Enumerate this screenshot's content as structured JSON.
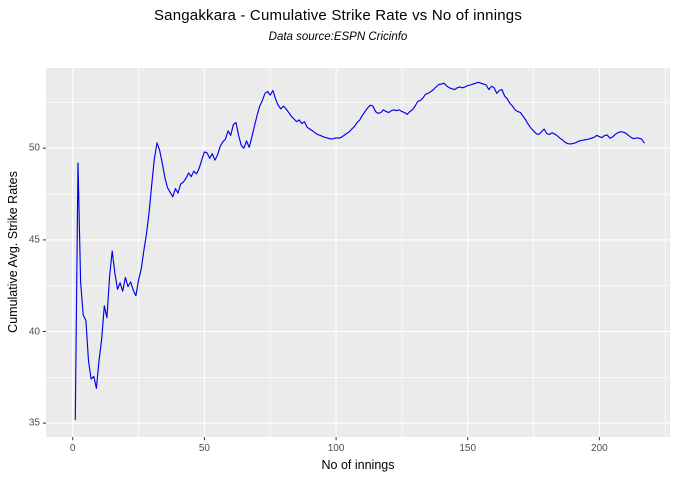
{
  "chart_data": {
    "type": "line",
    "title": "Sangakkara - Cumulative Strike Rate vs No of innings",
    "subtitle": "Data source:ESPN Cricinfo",
    "xlabel": "No of innings",
    "ylabel": "Cumulative Avg. Strike Rates",
    "legend_position": "none",
    "grid": true,
    "x_ticks": [
      0,
      50,
      100,
      150,
      200
    ],
    "y_ticks": [
      35,
      40,
      45,
      50
    ],
    "x_minor_ticks": [
      25,
      75,
      125,
      175,
      225
    ],
    "y_minor_ticks": [
      37.5,
      42.5,
      47.5,
      52.5
    ],
    "x_range": [
      -10.14,
      226.8
    ],
    "y_range": [
      34.24,
      54.38
    ],
    "colors": {
      "line": "#0000ee",
      "panel_background": "#ebebeb",
      "gridline": "#ffffff",
      "tick_mark": "#333333",
      "tick_label": "#4d4d4d",
      "text": "#000000"
    },
    "series": [
      {
        "name": "Cumulative Avg. Strike Rate",
        "points": [
          [
            1,
            35.2
          ],
          [
            2,
            49.2
          ],
          [
            3,
            42.7
          ],
          [
            4,
            40.9
          ],
          [
            5,
            40.6
          ],
          [
            6,
            38.4
          ],
          [
            7,
            37.4
          ],
          [
            8,
            37.55
          ],
          [
            9,
            36.9
          ],
          [
            10,
            38.4
          ],
          [
            11,
            39.6
          ],
          [
            12,
            41.4
          ],
          [
            13,
            40.75
          ],
          [
            14,
            43.0
          ],
          [
            15,
            44.4
          ],
          [
            16,
            43.2
          ],
          [
            17,
            42.3
          ],
          [
            18,
            42.65
          ],
          [
            19,
            42.2
          ],
          [
            20,
            42.95
          ],
          [
            21,
            42.45
          ],
          [
            22,
            42.7
          ],
          [
            23,
            42.25
          ],
          [
            24,
            41.95
          ],
          [
            25,
            42.8
          ],
          [
            26,
            43.4
          ],
          [
            27,
            44.4
          ],
          [
            28,
            45.3
          ],
          [
            29,
            46.5
          ],
          [
            30,
            48.0
          ],
          [
            31,
            49.4
          ],
          [
            32,
            50.3
          ],
          [
            33,
            49.9
          ],
          [
            34,
            49.2
          ],
          [
            35,
            48.4
          ],
          [
            36,
            47.85
          ],
          [
            37,
            47.6
          ],
          [
            38,
            47.35
          ],
          [
            39,
            47.8
          ],
          [
            40,
            47.55
          ],
          [
            41,
            48.05
          ],
          [
            42,
            48.15
          ],
          [
            43,
            48.35
          ],
          [
            44,
            48.65
          ],
          [
            45,
            48.45
          ],
          [
            46,
            48.75
          ],
          [
            47,
            48.6
          ],
          [
            48,
            48.9
          ],
          [
            49,
            49.35
          ],
          [
            50,
            49.8
          ],
          [
            51,
            49.75
          ],
          [
            52,
            49.45
          ],
          [
            53,
            49.7
          ],
          [
            54,
            49.35
          ],
          [
            55,
            49.65
          ],
          [
            56,
            50.1
          ],
          [
            57,
            50.35
          ],
          [
            58,
            50.5
          ],
          [
            59,
            50.95
          ],
          [
            60,
            50.7
          ],
          [
            61,
            51.3
          ],
          [
            62,
            51.4
          ],
          [
            63,
            50.7
          ],
          [
            64,
            50.15
          ],
          [
            65,
            50.0
          ],
          [
            66,
            50.4
          ],
          [
            67,
            50.05
          ],
          [
            68,
            50.6
          ],
          [
            69,
            51.2
          ],
          [
            70,
            51.8
          ],
          [
            71,
            52.3
          ],
          [
            72,
            52.6
          ],
          [
            73,
            53.0
          ],
          [
            74,
            53.1
          ],
          [
            75,
            52.9
          ],
          [
            76,
            53.15
          ],
          [
            77,
            52.7
          ],
          [
            78,
            52.35
          ],
          [
            79,
            52.15
          ],
          [
            80,
            52.3
          ],
          [
            81,
            52.15
          ],
          [
            82,
            51.95
          ],
          [
            83,
            51.75
          ],
          [
            84,
            51.6
          ],
          [
            85,
            51.45
          ],
          [
            86,
            51.55
          ],
          [
            87,
            51.35
          ],
          [
            88,
            51.45
          ],
          [
            89,
            51.15
          ],
          [
            90,
            51.05
          ],
          [
            91,
            50.95
          ],
          [
            92,
            50.85
          ],
          [
            93,
            50.75
          ],
          [
            94,
            50.7
          ],
          [
            95,
            50.63
          ],
          [
            96,
            50.58
          ],
          [
            97,
            50.55
          ],
          [
            98,
            50.5
          ],
          [
            99,
            50.52
          ],
          [
            100,
            50.57
          ],
          [
            101,
            50.55
          ],
          [
            102,
            50.6
          ],
          [
            103,
            50.7
          ],
          [
            104,
            50.8
          ],
          [
            105,
            50.9
          ],
          [
            106,
            51.05
          ],
          [
            107,
            51.2
          ],
          [
            108,
            51.4
          ],
          [
            109,
            51.55
          ],
          [
            110,
            51.8
          ],
          [
            111,
            52.0
          ],
          [
            112,
            52.2
          ],
          [
            113,
            52.35
          ],
          [
            114,
            52.3
          ],
          [
            115,
            52.0
          ],
          [
            116,
            51.9
          ],
          [
            117,
            51.95
          ],
          [
            118,
            52.1
          ],
          [
            119,
            52.0
          ],
          [
            120,
            51.95
          ],
          [
            121,
            52.05
          ],
          [
            122,
            52.1
          ],
          [
            123,
            52.05
          ],
          [
            124,
            52.1
          ],
          [
            125,
            52.0
          ],
          [
            126,
            51.95
          ],
          [
            127,
            51.85
          ],
          [
            128,
            52.0
          ],
          [
            129,
            52.1
          ],
          [
            130,
            52.3
          ],
          [
            131,
            52.55
          ],
          [
            132,
            52.6
          ],
          [
            133,
            52.75
          ],
          [
            134,
            52.95
          ],
          [
            135,
            53.0
          ],
          [
            136,
            53.1
          ],
          [
            137,
            53.2
          ],
          [
            138,
            53.35
          ],
          [
            139,
            53.48
          ],
          [
            140,
            53.5
          ],
          [
            141,
            53.55
          ],
          [
            142,
            53.4
          ],
          [
            143,
            53.3
          ],
          [
            144,
            53.25
          ],
          [
            145,
            53.2
          ],
          [
            146,
            53.3
          ],
          [
            147,
            53.35
          ],
          [
            148,
            53.3
          ],
          [
            149,
            53.35
          ],
          [
            150,
            53.42
          ],
          [
            151,
            53.45
          ],
          [
            152,
            53.5
          ],
          [
            153,
            53.55
          ],
          [
            154,
            53.6
          ],
          [
            155,
            53.55
          ],
          [
            156,
            53.5
          ],
          [
            157,
            53.45
          ],
          [
            158,
            53.2
          ],
          [
            159,
            53.38
          ],
          [
            160,
            53.3
          ],
          [
            161,
            53.0
          ],
          [
            162,
            53.15
          ],
          [
            163,
            53.2
          ],
          [
            164,
            52.85
          ],
          [
            165,
            52.7
          ],
          [
            166,
            52.45
          ],
          [
            167,
            52.3
          ],
          [
            168,
            52.1
          ],
          [
            169,
            52.0
          ],
          [
            170,
            51.95
          ],
          [
            171,
            51.75
          ],
          [
            172,
            51.55
          ],
          [
            173,
            51.3
          ],
          [
            174,
            51.1
          ],
          [
            175,
            50.95
          ],
          [
            176,
            50.8
          ],
          [
            177,
            50.75
          ],
          [
            178,
            50.9
          ],
          [
            179,
            51.05
          ],
          [
            180,
            50.8
          ],
          [
            181,
            50.75
          ],
          [
            182,
            50.85
          ],
          [
            183,
            50.78
          ],
          [
            184,
            50.68
          ],
          [
            185,
            50.55
          ],
          [
            186,
            50.45
          ],
          [
            187,
            50.32
          ],
          [
            188,
            50.25
          ],
          [
            189,
            50.24
          ],
          [
            190,
            50.26
          ],
          [
            191,
            50.3
          ],
          [
            192,
            50.38
          ],
          [
            193,
            50.42
          ],
          [
            194,
            50.45
          ],
          [
            195,
            50.47
          ],
          [
            196,
            50.5
          ],
          [
            197,
            50.55
          ],
          [
            198,
            50.6
          ],
          [
            199,
            50.7
          ],
          [
            200,
            50.63
          ],
          [
            201,
            50.58
          ],
          [
            202,
            50.7
          ],
          [
            203,
            50.72
          ],
          [
            204,
            50.55
          ],
          [
            205,
            50.62
          ],
          [
            206,
            50.75
          ],
          [
            207,
            50.85
          ],
          [
            208,
            50.9
          ],
          [
            209,
            50.88
          ],
          [
            210,
            50.82
          ],
          [
            211,
            50.7
          ],
          [
            212,
            50.6
          ],
          [
            213,
            50.52
          ],
          [
            214,
            50.56
          ],
          [
            215,
            50.55
          ],
          [
            216,
            50.5
          ],
          [
            217,
            50.3
          ]
        ]
      }
    ]
  }
}
